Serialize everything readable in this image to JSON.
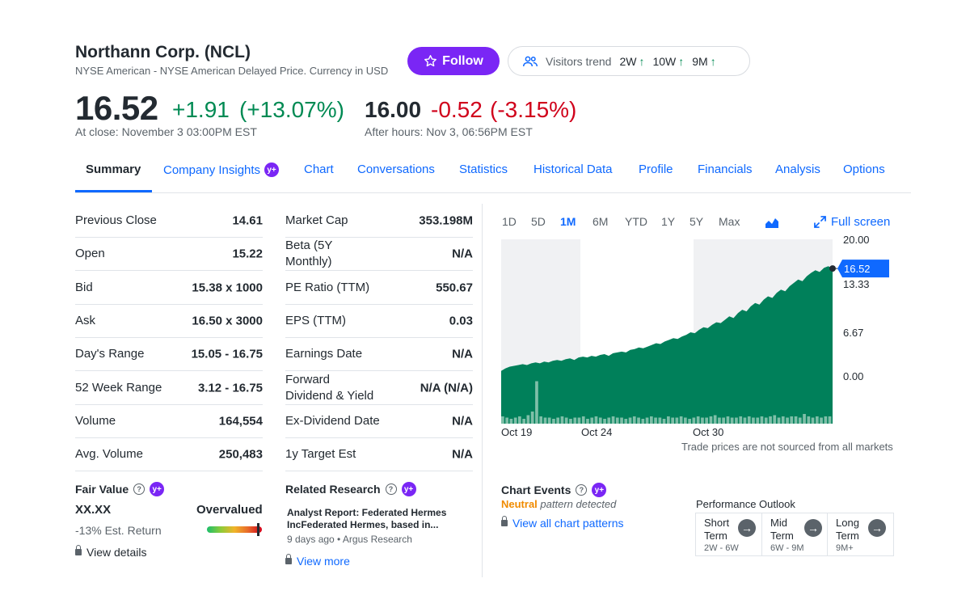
{
  "header": {
    "title": "Northann Corp. (NCL)",
    "subtitle": "NYSE American - NYSE American Delayed Price. Currency in USD",
    "follow_label": "Follow",
    "visitors_label": "Visitors trend",
    "visitors": [
      "2W",
      "10W",
      "9M"
    ]
  },
  "quote": {
    "price": "16.52",
    "change": "+1.91",
    "change_pct": "(+13.07%)",
    "close_note": "At close: November 3 03:00PM EST",
    "ah_price": "16.00",
    "ah_change": "-0.52",
    "ah_change_pct": "(-3.15%)",
    "ah_note": "After hours: Nov 3, 06:56PM EST"
  },
  "tabs": [
    "Summary",
    "Company Insights",
    "Chart",
    "Conversations",
    "Statistics",
    "Historical Data",
    "Profile",
    "Financials",
    "Analysis",
    "Options"
  ],
  "stats_left": [
    {
      "label": "Previous Close",
      "value": "14.61"
    },
    {
      "label": "Open",
      "value": "15.22"
    },
    {
      "label": "Bid",
      "value": "15.38 x 1000"
    },
    {
      "label": "Ask",
      "value": "16.50 x 3000"
    },
    {
      "label": "Day's Range",
      "value": "15.05 - 16.75"
    },
    {
      "label": "52 Week Range",
      "value": "3.12 - 16.75"
    },
    {
      "label": "Volume",
      "value": "164,554"
    },
    {
      "label": "Avg. Volume",
      "value": "250,483"
    }
  ],
  "stats_right": [
    {
      "label": "Market Cap",
      "value": "353.198M"
    },
    {
      "label": "Beta (5Y Monthly)",
      "value": "N/A"
    },
    {
      "label": "PE Ratio (TTM)",
      "value": "550.67"
    },
    {
      "label": "EPS (TTM)",
      "value": "0.03"
    },
    {
      "label": "Earnings Date",
      "value": "N/A"
    },
    {
      "label": "Forward Dividend & Yield",
      "value": "N/A (N/A)"
    },
    {
      "label": "Ex-Dividend Date",
      "value": "N/A"
    },
    {
      "label": "1y Target Est",
      "value": "N/A"
    }
  ],
  "fair_value": {
    "title": "Fair Value",
    "value": "XX.XX",
    "verdict": "Overvalued",
    "est_return": "-13% Est. Return",
    "details_link": "View details"
  },
  "research": {
    "title": "Related Research",
    "headline": "Analyst Report: Federated Hermes IncFederated Hermes, based in...",
    "meta": "9 days ago • Argus Research",
    "more_link": "View more"
  },
  "chart": {
    "ranges": [
      "1D",
      "5D",
      "1M",
      "6M",
      "YTD",
      "1Y",
      "5Y",
      "Max"
    ],
    "active_range": "1M",
    "fullscreen_label": "Full screen",
    "note": "Trade prices are not sourced from all markets",
    "accent": "#0f69ff",
    "fill_color": "#00805a"
  },
  "chart_data": {
    "type": "area",
    "x_ticks": [
      "Oct 19",
      "Oct 24",
      "Oct 30"
    ],
    "y_ticks": [
      "20.00",
      "13.33",
      "6.67",
      "0.00"
    ],
    "ylim": [
      -2,
      20
    ],
    "last_value_label": "16.52",
    "series": [
      {
        "values": [
          4.3,
          4.6,
          4.8,
          4.9,
          5.0,
          5.1,
          5.0,
          5.2,
          5.3,
          5.2,
          5.4,
          5.3,
          5.5,
          5.6,
          5.5,
          5.7,
          5.8,
          5.6,
          5.9,
          6.0,
          5.9,
          6.1,
          6.0,
          6.2,
          6.3,
          6.1,
          6.4,
          6.5,
          6.6,
          6.5,
          6.8,
          6.9,
          7.1,
          7.0,
          7.2,
          7.4,
          7.6,
          7.5,
          7.8,
          8.0,
          8.2,
          8.1,
          8.4,
          8.6,
          8.9,
          8.8,
          9.2,
          9.5,
          9.4,
          9.8,
          10.1,
          10.0,
          10.4,
          10.8,
          10.6,
          11.2,
          11.6,
          11.4,
          12.0,
          12.4,
          12.2,
          12.8,
          13.2,
          13.0,
          13.6,
          14.0,
          13.8,
          14.4,
          14.8,
          15.2,
          15.0,
          15.6,
          16.0,
          16.3,
          16.1,
          16.6,
          16.8,
          16.52
        ]
      }
    ],
    "volume": [
      0.06,
      0.05,
      0.04,
      0.05,
      0.06,
      0.04,
      0.07,
      0.1,
      0.35,
      0.06,
      0.05,
      0.05,
      0.04,
      0.05,
      0.06,
      0.05,
      0.04,
      0.05,
      0.05,
      0.06,
      0.04,
      0.05,
      0.06,
      0.05,
      0.04,
      0.05,
      0.06,
      0.05,
      0.05,
      0.04,
      0.05,
      0.06,
      0.05,
      0.04,
      0.05,
      0.06,
      0.05,
      0.05,
      0.04,
      0.06,
      0.05,
      0.05,
      0.06,
      0.05,
      0.04,
      0.05,
      0.06,
      0.05,
      0.05,
      0.06,
      0.07,
      0.05,
      0.05,
      0.06,
      0.05,
      0.05,
      0.06,
      0.05,
      0.06,
      0.05,
      0.05,
      0.06,
      0.05,
      0.06,
      0.07,
      0.05,
      0.06,
      0.05,
      0.06,
      0.06,
      0.05,
      0.08,
      0.06,
      0.05,
      0.06,
      0.05,
      0.06,
      0.06
    ]
  },
  "chart_events": {
    "title": "Chart Events",
    "pattern_word": "Neutral",
    "pattern_text": "pattern detected",
    "view_link": "View all chart patterns",
    "perf_title": "Performance Outlook",
    "terms": [
      {
        "name": "Short Term",
        "range": "2W - 6W"
      },
      {
        "name": "Mid Term",
        "range": "6W - 9M"
      },
      {
        "name": "Long Term",
        "range": "9M+"
      }
    ]
  }
}
